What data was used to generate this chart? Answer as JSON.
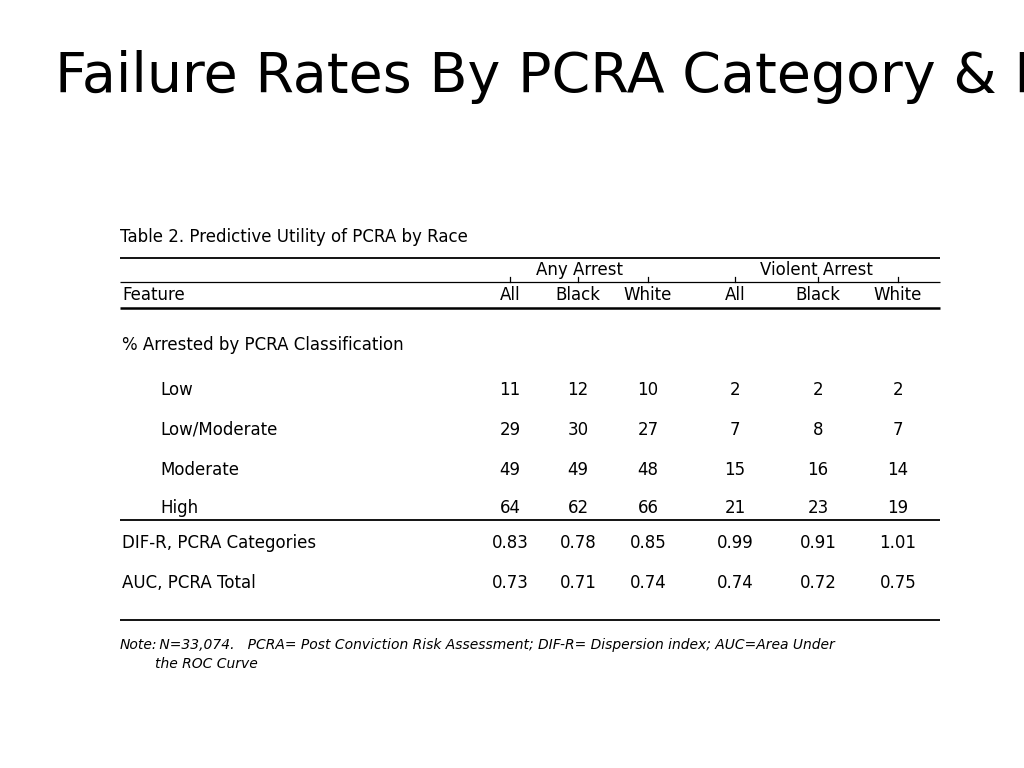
{
  "title": "Failure Rates By PCRA Category & Race",
  "table_title": "Table 2. Predictive Utility of PCRA by Race",
  "col_groups": [
    {
      "label": "Any Arrest"
    },
    {
      "label": "Violent Arrest"
    }
  ],
  "section_header": "% Arrested by PCRA Classification",
  "rows": [
    {
      "feature": "Low",
      "vals": [
        "11",
        "12",
        "10",
        "2",
        "2",
        "2"
      ]
    },
    {
      "feature": "Low/Moderate",
      "vals": [
        "29",
        "30",
        "27",
        "7",
        "8",
        "7"
      ]
    },
    {
      "feature": "Moderate",
      "vals": [
        "49",
        "49",
        "48",
        "15",
        "16",
        "14"
      ]
    },
    {
      "feature": "High",
      "vals": [
        "64",
        "62",
        "66",
        "21",
        "23",
        "19"
      ]
    }
  ],
  "stat_rows": [
    {
      "feature": "DIF-R, PCRA Categories",
      "vals": [
        "0.83",
        "0.78",
        "0.85",
        "0.99",
        "0.91",
        "1.01"
      ]
    },
    {
      "feature": "AUC, PCRA Total",
      "vals": [
        "0.73",
        "0.71",
        "0.74",
        "0.74",
        "0.72",
        "0.75"
      ]
    }
  ],
  "col_headers": [
    "All",
    "Black",
    "White",
    "All",
    "Black",
    "White"
  ],
  "note_italic": "Note:",
  "note_rest": " N=33,074.   PCRA= Post Conviction Risk Assessment; DIF-R= Dispersion index; AUC=Area Under\nthe ROC Curve",
  "background_color": "#ffffff",
  "title_fontsize": 40,
  "table_title_fontsize": 12,
  "col_group_fontsize": 12,
  "header_fontsize": 12,
  "body_fontsize": 12,
  "note_fontsize": 10
}
